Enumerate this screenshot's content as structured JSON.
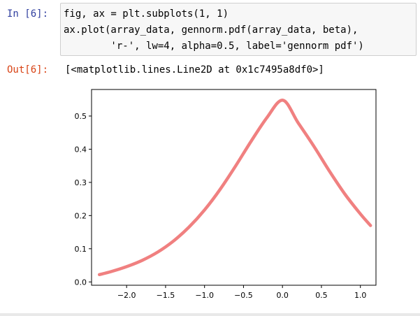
{
  "cell": {
    "in_prompt": "In [6]:",
    "out_prompt": "Out[6]:",
    "code_lines": [
      "fig, ax = plt.subplots(1, 1)",
      "ax.plot(array_data, gennorm.pdf(array_data, beta),",
      "        'r-', lw=4, alpha=0.5, label='gennorm pdf')"
    ],
    "output_text": "[<matplotlib.lines.Line2D at 0x1c7495a8df0>]"
  },
  "colors": {
    "line": "#f08080",
    "in_prompt": "#303f9f",
    "out_prompt": "#d84315"
  },
  "chart_data": {
    "type": "line",
    "title": "",
    "xlabel": "",
    "ylabel": "",
    "xlim": [
      -2.45,
      1.2
    ],
    "ylim": [
      -0.01,
      0.58
    ],
    "xticks": [
      -2.0,
      -1.5,
      -1.0,
      -0.5,
      0.0,
      0.5,
      1.0
    ],
    "xtick_labels": [
      "−2.0",
      "−1.5",
      "−1.0",
      "−0.5",
      "0.0",
      "0.5",
      "1.0"
    ],
    "yticks": [
      0.0,
      0.1,
      0.2,
      0.3,
      0.4,
      0.5
    ],
    "ytick_labels": [
      "0.0",
      "0.1",
      "0.2",
      "0.3",
      "0.4",
      "0.5"
    ],
    "grid": false,
    "series": [
      {
        "label": "gennorm pdf",
        "x": [
          -2.35,
          -2.2,
          -2.0,
          -1.8,
          -1.6,
          -1.4,
          -1.2,
          -1.0,
          -0.8,
          -0.6,
          -0.4,
          -0.2,
          0.0,
          0.2,
          0.4,
          0.6,
          0.8,
          1.0,
          1.13
        ],
        "y": [
          0.022,
          0.031,
          0.046,
          0.065,
          0.09,
          0.123,
          0.165,
          0.217,
          0.279,
          0.35,
          0.425,
          0.495,
          0.548,
          0.48,
          0.41,
          0.335,
          0.265,
          0.205,
          0.17
        ]
      }
    ]
  }
}
